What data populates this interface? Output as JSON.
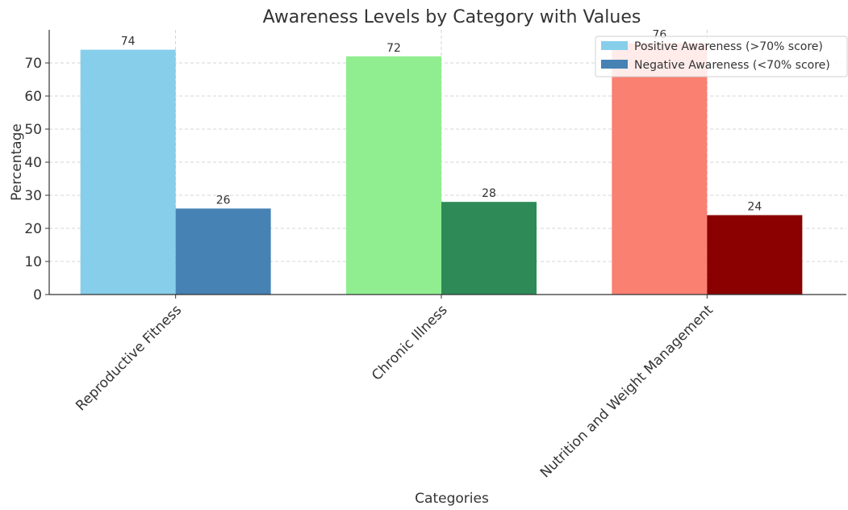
{
  "chart_data": {
    "type": "bar",
    "title": "Awareness Levels by Category with Values",
    "xlabel": "Categories",
    "ylabel": "Percentage",
    "categories": [
      "Reproductive Fitness",
      "Chronic Illness",
      "Nutrition and Weight Management"
    ],
    "ylim": [
      0,
      80
    ],
    "yticks": [
      0,
      10,
      20,
      30,
      40,
      50,
      60,
      70
    ],
    "grid": true,
    "legend_position": "top-right",
    "series": [
      {
        "name": "Positive Awareness (>70% score)",
        "values": [
          74,
          72,
          76
        ],
        "colors": [
          "#87ceeb",
          "#90ee90",
          "#fa8072"
        ],
        "legend_color": "#87ceeb"
      },
      {
        "name": "Negative Awareness (<70% score)",
        "values": [
          26,
          28,
          24
        ],
        "colors": [
          "#4682b4",
          "#2e8b57",
          "#8b0000"
        ],
        "legend_color": "#4682b4"
      }
    ],
    "data_labels": true
  }
}
